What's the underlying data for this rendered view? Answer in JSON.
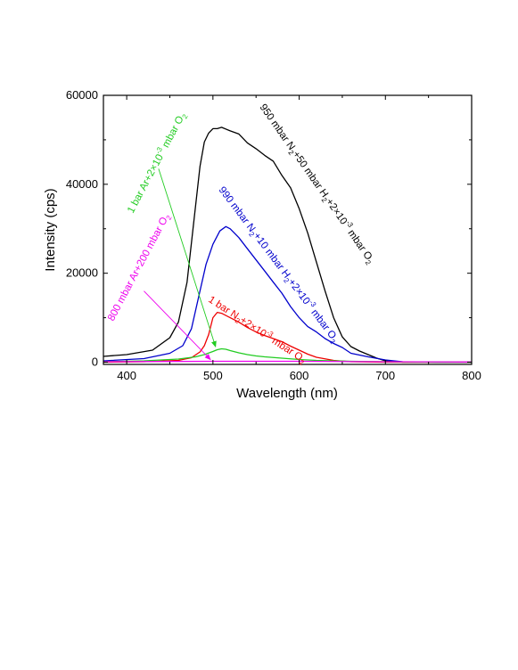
{
  "chart_data": {
    "type": "line",
    "title": "",
    "xlabel": "Wavelength (nm)",
    "ylabel": "Intensity (cps)",
    "xlim": [
      373,
      800
    ],
    "ylim": [
      -500,
      60000
    ],
    "x_ticks": [
      400,
      500,
      600,
      700,
      800
    ],
    "x_tick_labels": [
      "400",
      "500",
      "600",
      "700",
      "800"
    ],
    "y_ticks": [
      0,
      20000,
      40000,
      60000
    ],
    "y_tick_labels": [
      "0",
      "20000",
      "40000",
      "60000"
    ],
    "grid": false,
    "legend": "none",
    "series": [
      {
        "color": "#000000",
        "label": {
          "segments": [
            {
              "t": "950 mbar N"
            },
            {
              "t": "2",
              "sub": true
            },
            {
              "t": "+50 mbar H"
            },
            {
              "t": "2",
              "sub": true
            },
            {
              "t": "+2×10"
            },
            {
              "t": "-3",
              "sup": true
            },
            {
              "t": "  mbar O"
            },
            {
              "t": "2",
              "sub": true
            }
          ]
        },
        "x": [
          373,
          400,
          430,
          450,
          460,
          470,
          478,
          485,
          490,
          495,
          500,
          505,
          510,
          520,
          530,
          540,
          550,
          560,
          570,
          580,
          590,
          600,
          610,
          620,
          630,
          640,
          650,
          660,
          670,
          680,
          690,
          700,
          720,
          760,
          800
        ],
        "y": [
          1300,
          1700,
          2700,
          5500,
          9000,
          18000,
          32000,
          44000,
          49500,
          51500,
          52500,
          52500,
          52800,
          52000,
          51300,
          49300,
          48000,
          46500,
          45200,
          42000,
          39200,
          34500,
          29000,
          22500,
          16000,
          10000,
          5700,
          3500,
          2500,
          1700,
          900,
          300,
          0,
          0,
          0
        ]
      },
      {
        "color": "#0000cc",
        "label": {
          "segments": [
            {
              "t": "990 mbar N"
            },
            {
              "t": "2",
              "sub": true
            },
            {
              "t": "+10 mbar H"
            },
            {
              "t": "2",
              "sub": true
            },
            {
              "t": "+2×10"
            },
            {
              "t": "-3",
              "sup": true
            },
            {
              "t": "  mbar O"
            },
            {
              "t": "2",
              "sub": true
            }
          ]
        },
        "x": [
          373,
          420,
          450,
          465,
          475,
          485,
          492,
          500,
          508,
          515,
          520,
          530,
          540,
          550,
          560,
          570,
          580,
          590,
          600,
          610,
          620,
          630,
          640,
          650,
          660,
          680,
          700,
          720,
          760,
          800
        ],
        "y": [
          300,
          800,
          2000,
          3700,
          7500,
          16000,
          22000,
          26500,
          29500,
          30500,
          30000,
          28000,
          25500,
          23000,
          20500,
          18000,
          15500,
          12500,
          10000,
          8000,
          6800,
          5300,
          4200,
          3300,
          2000,
          1200,
          500,
          100,
          0,
          0
        ]
      },
      {
        "color": "#ee0000",
        "label": {
          "segments": [
            {
              "t": "1 bar N"
            },
            {
              "t": "2",
              "sub": true
            },
            {
              "t": "+2×10"
            },
            {
              "t": "-3",
              "sup": true
            },
            {
              "t": "  mbar O"
            },
            {
              "t": "2",
              "sub": true
            }
          ]
        },
        "x": [
          373,
          420,
          460,
          475,
          485,
          490,
          495,
          500,
          505,
          510,
          520,
          530,
          540,
          550,
          560,
          570,
          580,
          590,
          600,
          610,
          620,
          640,
          660,
          700,
          760,
          800
        ],
        "y": [
          0,
          100,
          400,
          1000,
          2300,
          3700,
          6200,
          10000,
          11200,
          11000,
          10000,
          9000,
          7800,
          6800,
          6000,
          5300,
          4600,
          3600,
          2700,
          1800,
          1100,
          400,
          100,
          0,
          0,
          0
        ]
      },
      {
        "color": "#22cc22",
        "label": {
          "segments": [
            {
              "t": "1 bar Ar+2×10"
            },
            {
              "t": "-3",
              "sup": true
            },
            {
              "t": "  mbar O"
            },
            {
              "t": "2",
              "sub": true
            }
          ]
        },
        "x": [
          373,
          420,
          460,
          480,
          490,
          500,
          505,
          510,
          515,
          520,
          530,
          540,
          550,
          560,
          580,
          600,
          620,
          640,
          660,
          700,
          760,
          800
        ],
        "y": [
          100,
          300,
          700,
          1200,
          1700,
          2400,
          2800,
          3000,
          2900,
          2600,
          2100,
          1700,
          1400,
          1200,
          900,
          600,
          400,
          300,
          200,
          100,
          0,
          0
        ]
      },
      {
        "color": "#ee00ee",
        "label": {
          "segments": [
            {
              "t": "800 mbar Ar+200 mbar O"
            },
            {
              "t": "2",
              "sub": true
            }
          ]
        },
        "x": [
          373,
          500,
          600,
          700,
          800
        ],
        "y": [
          100,
          200,
          200,
          100,
          50
        ]
      }
    ],
    "annotations": [
      {
        "series": 3,
        "color": "#22cc22",
        "arrow_from": [
          437,
          43500
        ],
        "arrow_to": [
          503,
          3500
        ]
      },
      {
        "series": 4,
        "color": "#ee00ee",
        "arrow_from": [
          420,
          16000
        ],
        "arrow_to": [
          497,
          600
        ]
      }
    ]
  }
}
